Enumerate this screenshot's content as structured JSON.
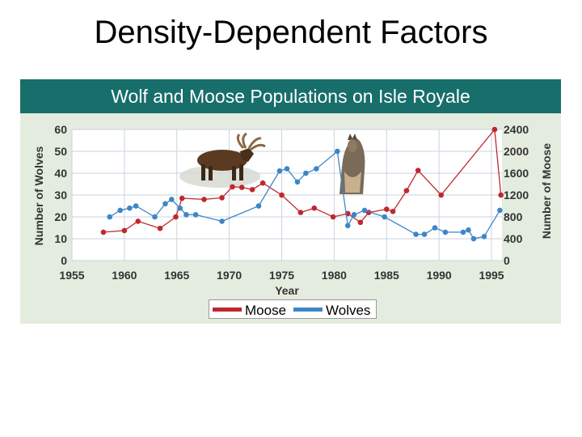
{
  "slide_title": "Density-Dependent Factors",
  "colors": {
    "moose": "#c0272d",
    "wolves": "#3d86c6",
    "header": "#176e6a",
    "panel": "#e4ecdf"
  },
  "chart_data": {
    "type": "line",
    "title": "Wolf and Moose Populations on Isle Royale",
    "xlabel": "Year",
    "ylabel_left": "Number of Wolves",
    "ylabel_right": "Number of Moose",
    "xlim": [
      1955,
      1996
    ],
    "xticks": [
      "1955",
      "1960",
      "1965",
      "1970",
      "1975",
      "1980",
      "1985",
      "1990",
      "1995"
    ],
    "ylim_left": [
      0,
      60
    ],
    "yticks_left": [
      "0",
      "10",
      "20",
      "30",
      "40",
      "50",
      "60"
    ],
    "ylim_right": [
      0,
      2400
    ],
    "yticks_right": [
      "0",
      "400",
      "800",
      "1200",
      "1600",
      "2000",
      "2400"
    ],
    "grid": true,
    "legend": "bottom-center",
    "series": [
      {
        "name": "Moose",
        "axis": "right",
        "color": "#c0272d",
        "x": [
          1958,
          1960,
          1961.3,
          1963.4,
          1964.9,
          1965.5,
          1967.6,
          1969.3,
          1970.3,
          1971.2,
          1972.2,
          1973.2,
          1975,
          1976.8,
          1978.1,
          1979.9,
          1981.3,
          1982.5,
          1983.3,
          1985,
          1985.6,
          1986.9,
          1988,
          1990.2,
          1995.3,
          1995.9
        ],
        "y": [
          520,
          550,
          720,
          590,
          800,
          1140,
          1120,
          1150,
          1350,
          1340,
          1300,
          1420,
          1200,
          880,
          960,
          800,
          860,
          700,
          880,
          940,
          900,
          1280,
          1650,
          1200,
          2400,
          1200
        ]
      },
      {
        "name": "Wolves",
        "axis": "left",
        "color": "#3d86c6",
        "x": [
          1958.6,
          1959.6,
          1960.5,
          1961.1,
          1962.9,
          1963.9,
          1964.5,
          1965.3,
          1965.9,
          1966.8,
          1969.3,
          1972.8,
          1974.8,
          1975.5,
          1976.5,
          1977.3,
          1978.3,
          1980.3,
          1981.3,
          1981.9,
          1982.9,
          1984.8,
          1987.8,
          1988.6,
          1989.6,
          1990.6,
          1992.3,
          1992.8,
          1993.3,
          1994.3,
          1995.8
        ],
        "y": [
          20,
          23,
          24,
          25,
          20,
          26,
          28,
          24,
          21,
          21,
          18,
          25,
          41,
          42,
          36,
          40,
          42,
          50,
          16,
          21,
          23,
          20,
          12,
          12,
          15,
          13,
          13,
          14,
          10,
          11,
          23
        ]
      }
    ]
  }
}
